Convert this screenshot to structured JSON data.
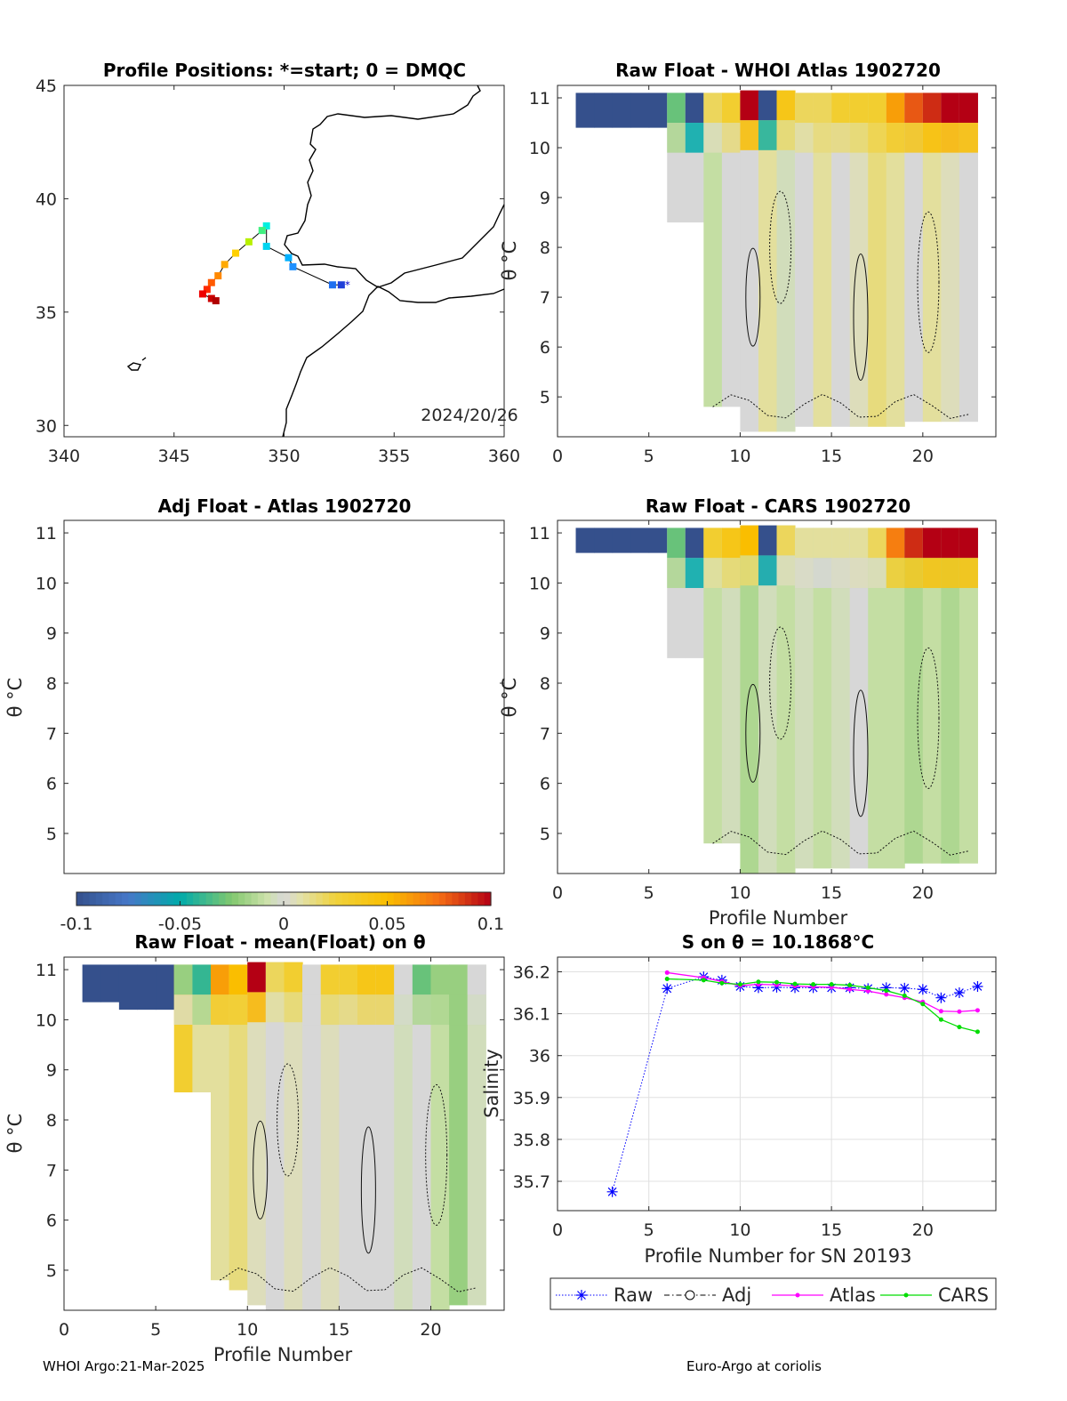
{
  "footer": {
    "left": "WHOI Argo:21-Mar-2025",
    "right": "Euro-Argo at coriolis"
  },
  "colors": {
    "raw": "#0000ff",
    "adj": "#000000",
    "atlas": "#ff00ff",
    "cars": "#00dd00"
  },
  "colorbar": {
    "ticks": [
      "-0.1",
      "-0.05",
      "0",
      "0.05",
      "0.1"
    ],
    "range": [
      -0.1,
      0.1
    ],
    "colormap": "parula-gray-hot"
  },
  "chart_data": [
    {
      "id": "map",
      "type": "scatter",
      "title": "Profile Positions: *=start; 0 = DMQC",
      "xlim": [
        340,
        360
      ],
      "ylim": [
        29.5,
        45
      ],
      "xticks": [
        "340",
        "345",
        "350",
        "355",
        "360"
      ],
      "yticks": [
        "30",
        "35",
        "40",
        "45"
      ],
      "annotation": "2024/20/26",
      "track": {
        "lon": [
          352.6,
          352.2,
          350.4,
          350.2,
          349.2,
          349.2,
          349.0,
          348.4,
          347.8,
          347.3,
          347.0,
          346.7,
          346.5,
          346.3,
          346.7,
          346.9
        ],
        "lat": [
          36.2,
          36.2,
          37.0,
          37.4,
          37.9,
          38.8,
          38.6,
          38.1,
          37.6,
          37.1,
          36.6,
          36.3,
          36.0,
          35.8,
          35.6,
          35.5
        ],
        "colors": [
          "#1f3fd8",
          "#1f6ff0",
          "#1e90ff",
          "#00b0ff",
          "#00d4f0",
          "#00f0e0",
          "#40f080",
          "#b8f000",
          "#ffd000",
          "#ffaa00",
          "#ff8800",
          "#ff5a00",
          "#ff2a00",
          "#ee0000",
          "#cc0000",
          "#b00000"
        ]
      }
    },
    {
      "id": "raw-whoi",
      "type": "heatmap",
      "title": "Raw Float - WHOI Atlas  1902720",
      "xlim": [
        0,
        24
      ],
      "ylim": [
        4.2,
        11.25
      ],
      "xticks": [
        "0",
        "5",
        "10",
        "15",
        "20"
      ],
      "yticks": [
        "5",
        "6",
        "7",
        "8",
        "9",
        "10",
        "11"
      ],
      "ylabel": "θ °C",
      "xlabel": "",
      "columns": [
        {
          "x": 1,
          "ymin": 10.4,
          "ymax": 11.1,
          "v": -0.1
        },
        {
          "x": 2,
          "ymin": 10.4,
          "ymax": 11.1,
          "v": -0.1
        },
        {
          "x": 3,
          "ymin": 10.4,
          "ymax": 11.1,
          "v": -0.1
        },
        {
          "x": 4,
          "ymin": 10.4,
          "ymax": 11.1,
          "v": -0.1
        },
        {
          "x": 5,
          "ymin": 10.4,
          "ymax": 11.1,
          "v": -0.1
        },
        {
          "x": 6,
          "ymin": 8.5,
          "ymax": 11.1,
          "v": 0.0,
          "top": -0.03
        },
        {
          "x": 7,
          "ymin": 8.5,
          "ymax": 11.1,
          "v": 0.0,
          "top": -0.1
        },
        {
          "x": 8,
          "ymin": 4.8,
          "ymax": 11.1,
          "v": -0.01,
          "top": 0.02
        },
        {
          "x": 9,
          "ymin": 4.8,
          "ymax": 11.1,
          "v": 0.0,
          "top": 0.03
        },
        {
          "x": 10,
          "ymin": 4.3,
          "ymax": 11.15,
          "v": 0.0,
          "top": 0.1
        },
        {
          "x": 11,
          "ymin": 4.3,
          "ymax": 11.15,
          "v": 0.01,
          "top": -0.1
        },
        {
          "x": 12,
          "ymin": 4.3,
          "ymax": 11.15,
          "v": -0.005,
          "top": 0.04
        },
        {
          "x": 13,
          "ymin": 4.4,
          "ymax": 11.1,
          "v": 0.0,
          "top": 0.02
        },
        {
          "x": 14,
          "ymin": 4.4,
          "ymax": 11.1,
          "v": 0.01,
          "top": 0.02
        },
        {
          "x": 15,
          "ymin": 4.4,
          "ymax": 11.1,
          "v": 0.0,
          "top": 0.03
        },
        {
          "x": 16,
          "ymin": 4.4,
          "ymax": 11.1,
          "v": 0.005,
          "top": 0.03
        },
        {
          "x": 17,
          "ymin": 4.4,
          "ymax": 11.1,
          "v": 0.015,
          "top": 0.03
        },
        {
          "x": 18,
          "ymin": 4.4,
          "ymax": 11.1,
          "v": 0.01,
          "top": 0.06
        },
        {
          "x": 19,
          "ymin": 4.5,
          "ymax": 11.1,
          "v": 0.0,
          "top": 0.08
        },
        {
          "x": 20,
          "ymin": 4.5,
          "ymax": 11.1,
          "v": 0.01,
          "top": 0.09
        },
        {
          "x": 21,
          "ymin": 4.5,
          "ymax": 11.1,
          "v": 0.005,
          "top": 0.1
        },
        {
          "x": 22,
          "ymin": 4.5,
          "ymax": 11.1,
          "v": 0.0,
          "top": 0.1
        }
      ]
    },
    {
      "id": "adj-atlas",
      "type": "heatmap",
      "title": "Adj Float - Atlas  1902720",
      "xlim": [
        0,
        24
      ],
      "ylim": [
        4.2,
        11.25
      ],
      "yticks": [
        "5",
        "6",
        "7",
        "8",
        "9",
        "10",
        "11"
      ],
      "ylabel": "θ °C",
      "columns": []
    },
    {
      "id": "raw-cars",
      "type": "heatmap",
      "title": "Raw Float - CARS  1902720",
      "xlim": [
        0,
        24
      ],
      "ylim": [
        4.2,
        11.25
      ],
      "xticks": [
        "0",
        "5",
        "10",
        "15",
        "20"
      ],
      "yticks": [
        "5",
        "6",
        "7",
        "8",
        "9",
        "10",
        "11"
      ],
      "ylabel": "θ °C",
      "xlabel": "Profile Number",
      "columns": [
        {
          "x": 1,
          "ymin": 10.6,
          "ymax": 11.1,
          "v": -0.1
        },
        {
          "x": 2,
          "ymin": 10.6,
          "ymax": 11.1,
          "v": -0.1
        },
        {
          "x": 3,
          "ymin": 10.6,
          "ymax": 11.1,
          "v": -0.1
        },
        {
          "x": 4,
          "ymin": 10.6,
          "ymax": 11.1,
          "v": -0.1
        },
        {
          "x": 5,
          "ymin": 10.6,
          "ymax": 11.1,
          "v": -0.1
        },
        {
          "x": 6,
          "ymin": 8.5,
          "ymax": 11.1,
          "v": 0.0,
          "top": -0.03
        },
        {
          "x": 7,
          "ymin": 8.5,
          "ymax": 11.1,
          "v": 0.0,
          "top": -0.1
        },
        {
          "x": 8,
          "ymin": 4.8,
          "ymax": 11.1,
          "v": -0.01,
          "top": 0.03
        },
        {
          "x": 9,
          "ymin": 4.8,
          "ymax": 11.1,
          "v": -0.005,
          "top": 0.04
        },
        {
          "x": 10,
          "ymin": 4.2,
          "ymax": 11.15,
          "v": -0.015,
          "top": 0.05
        },
        {
          "x": 11,
          "ymin": 4.2,
          "ymax": 11.15,
          "v": -0.005,
          "top": -0.1
        },
        {
          "x": 12,
          "ymin": 4.2,
          "ymax": 11.15,
          "v": -0.01,
          "top": 0.02
        },
        {
          "x": 13,
          "ymin": 4.3,
          "ymax": 11.1,
          "v": -0.005,
          "top": 0.01
        },
        {
          "x": 14,
          "ymin": 4.3,
          "ymax": 11.1,
          "v": -0.01,
          "top": 0.01
        },
        {
          "x": 15,
          "ymin": 4.3,
          "ymax": 11.1,
          "v": -0.005,
          "top": 0.01
        },
        {
          "x": 16,
          "ymin": 4.3,
          "ymax": 11.1,
          "v": 0.0,
          "top": 0.01
        },
        {
          "x": 17,
          "ymin": 4.3,
          "ymax": 11.1,
          "v": -0.01,
          "top": 0.02
        },
        {
          "x": 18,
          "ymin": 4.3,
          "ymax": 11.1,
          "v": -0.01,
          "top": 0.07
        },
        {
          "x": 19,
          "ymin": 4.4,
          "ymax": 11.1,
          "v": -0.015,
          "top": 0.09
        },
        {
          "x": 20,
          "ymin": 4.4,
          "ymax": 11.1,
          "v": -0.01,
          "top": 0.1
        },
        {
          "x": 21,
          "ymin": 4.4,
          "ymax": 11.1,
          "v": -0.015,
          "top": 0.1
        },
        {
          "x": 22,
          "ymin": 4.4,
          "ymax": 11.1,
          "v": -0.01,
          "top": 0.1
        }
      ]
    },
    {
      "id": "raw-mean",
      "type": "heatmap",
      "title": "Raw Float - mean(Float) on θ",
      "xlim": [
        0,
        24
      ],
      "ylim": [
        4.2,
        11.25
      ],
      "xticks": [
        "0",
        "5",
        "10",
        "15",
        "20"
      ],
      "yticks": [
        "5",
        "6",
        "7",
        "8",
        "9",
        "10",
        "11"
      ],
      "ylabel": "θ °C",
      "xlabel": "Profile Number",
      "columns": [
        {
          "x": 1,
          "ymin": 10.35,
          "ymax": 11.1,
          "v": -0.1
        },
        {
          "x": 2,
          "ymin": 10.35,
          "ymax": 11.1,
          "v": -0.1
        },
        {
          "x": 3,
          "ymin": 10.2,
          "ymax": 11.1,
          "v": -0.1
        },
        {
          "x": 4,
          "ymin": 10.2,
          "ymax": 11.1,
          "v": -0.1
        },
        {
          "x": 5,
          "ymin": 10.2,
          "ymax": 11.1,
          "v": -0.1
        },
        {
          "x": 6,
          "ymin": 8.55,
          "ymax": 11.1,
          "v": 0.03,
          "top": -0.02
        },
        {
          "x": 7,
          "ymin": 8.55,
          "ymax": 11.1,
          "v": 0.01,
          "top": -0.04
        },
        {
          "x": 8,
          "ymin": 4.8,
          "ymax": 11.1,
          "v": 0.01,
          "top": 0.06
        },
        {
          "x": 9,
          "ymin": 4.6,
          "ymax": 11.1,
          "v": 0.015,
          "top": 0.05
        },
        {
          "x": 10,
          "ymin": 4.3,
          "ymax": 11.15,
          "v": 0.005,
          "top": 0.1
        },
        {
          "x": 11,
          "ymin": 4.2,
          "ymax": 11.15,
          "v": 0.0,
          "top": 0.02
        },
        {
          "x": 12,
          "ymin": 4.2,
          "ymax": 11.15,
          "v": 0.005,
          "top": 0.03
        },
        {
          "x": 13,
          "ymin": 4.2,
          "ymax": 11.1,
          "v": 0.0,
          "top": 0.0
        },
        {
          "x": 14,
          "ymin": 4.2,
          "ymax": 11.1,
          "v": 0.005,
          "top": 0.03
        },
        {
          "x": 15,
          "ymin": 4.2,
          "ymax": 11.1,
          "v": 0.0,
          "top": 0.03
        },
        {
          "x": 16,
          "ymin": 4.2,
          "ymax": 11.1,
          "v": 0.0,
          "top": 0.04
        },
        {
          "x": 17,
          "ymin": 4.2,
          "ymax": 11.1,
          "v": 0.0,
          "top": 0.04
        },
        {
          "x": 18,
          "ymin": 4.2,
          "ymax": 11.1,
          "v": -0.005,
          "top": 0.0
        },
        {
          "x": 19,
          "ymin": 4.2,
          "ymax": 11.1,
          "v": 0.0,
          "top": -0.03
        },
        {
          "x": 20,
          "ymin": 4.2,
          "ymax": 11.1,
          "v": -0.01,
          "top": -0.02
        },
        {
          "x": 21,
          "ymin": 4.3,
          "ymax": 11.1,
          "v": -0.02,
          "top": -0.02
        },
        {
          "x": 22,
          "ymin": 4.3,
          "ymax": 11.1,
          "v": -0.005,
          "top": 0.0
        }
      ]
    },
    {
      "id": "salinity",
      "type": "line",
      "title": "S on θ = 10.1868°C",
      "xlabel": "Profile Number for SN 20193",
      "ylabel": "Salinity",
      "xlim": [
        0,
        24
      ],
      "ylim": [
        35.63,
        36.235
      ],
      "grid": true,
      "xticks": [
        "0",
        "5",
        "10",
        "15",
        "20"
      ],
      "yticks": [
        "35.7",
        "35.8",
        "35.9",
        "36",
        "36.1",
        "36.2"
      ],
      "legend_position": "below",
      "series": [
        {
          "name": "Raw",
          "x": [
            3,
            6,
            8,
            9,
            10,
            11,
            12,
            13,
            14,
            15,
            16,
            17,
            18,
            19,
            20,
            21,
            22,
            23
          ],
          "values": [
            35.675,
            36.16,
            36.188,
            36.18,
            36.165,
            36.162,
            36.163,
            36.162,
            36.162,
            36.162,
            36.162,
            36.16,
            36.162,
            36.161,
            36.158,
            36.138,
            36.15,
            36.165
          ]
        },
        {
          "name": "Adj",
          "x": [],
          "values": []
        },
        {
          "name": "Atlas",
          "x": [
            6,
            8,
            9,
            10,
            11,
            12,
            13,
            14,
            15,
            16,
            17,
            18,
            19,
            20,
            21,
            22,
            23
          ],
          "values": [
            36.198,
            36.186,
            36.177,
            36.167,
            36.17,
            36.169,
            36.166,
            36.164,
            36.163,
            36.158,
            36.154,
            36.146,
            36.138,
            36.128,
            36.106,
            36.105,
            36.108
          ]
        },
        {
          "name": "CARS",
          "x": [
            6,
            8,
            9,
            10,
            11,
            12,
            13,
            14,
            15,
            16,
            17,
            18,
            19,
            20,
            21,
            22,
            23
          ],
          "values": [
            36.183,
            36.18,
            36.173,
            36.17,
            36.176,
            36.175,
            36.171,
            36.17,
            36.17,
            36.168,
            36.162,
            36.155,
            36.143,
            36.123,
            36.086,
            36.068,
            36.057
          ]
        }
      ]
    }
  ]
}
